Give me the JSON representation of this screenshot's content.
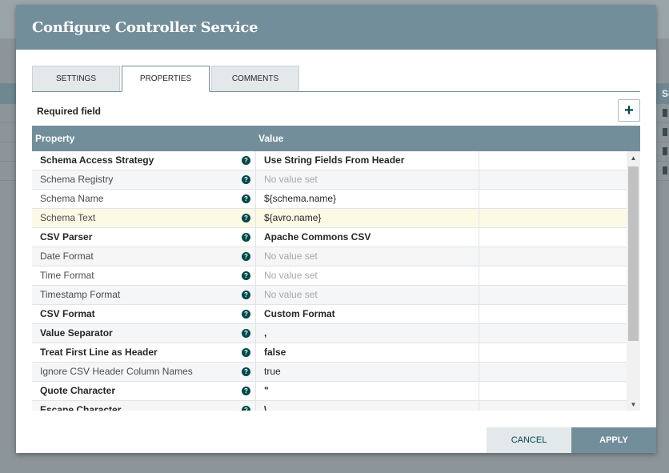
{
  "dialog": {
    "title": "Configure Controller Service"
  },
  "tabs": [
    {
      "label": "SETTINGS",
      "active": false
    },
    {
      "label": "PROPERTIES",
      "active": true
    },
    {
      "label": "COMMENTS",
      "active": false
    }
  ],
  "properties_panel": {
    "required_label": "Required field",
    "add_icon": "plus-icon",
    "add_glyph": "+",
    "headers": {
      "property": "Property",
      "value": "Value"
    },
    "help_glyph": "?",
    "rows": [
      {
        "name": "Schema Access Strategy",
        "value": "Use String Fields From Header",
        "required": true,
        "empty": false
      },
      {
        "name": "Schema Registry",
        "value": "No value set",
        "required": false,
        "empty": true
      },
      {
        "name": "Schema Name",
        "value": "${schema.name}",
        "required": false,
        "empty": false
      },
      {
        "name": "Schema Text",
        "value": "${avro.name}",
        "required": false,
        "empty": false
      },
      {
        "name": "CSV Parser",
        "value": "Apache Commons CSV",
        "required": true,
        "empty": false
      },
      {
        "name": "Date Format",
        "value": "No value set",
        "required": false,
        "empty": true
      },
      {
        "name": "Time Format",
        "value": "No value set",
        "required": false,
        "empty": true
      },
      {
        "name": "Timestamp Format",
        "value": "No value set",
        "required": false,
        "empty": true
      },
      {
        "name": "CSV Format",
        "value": "Custom Format",
        "required": true,
        "empty": false
      },
      {
        "name": "Value Separator",
        "value": ",",
        "required": true,
        "empty": false
      },
      {
        "name": "Treat First Line as Header",
        "value": "false",
        "required": true,
        "empty": false
      },
      {
        "name": "Ignore CSV Header Column Names",
        "value": "true",
        "required": false,
        "empty": false
      },
      {
        "name": "Quote Character",
        "value": "\"",
        "required": true,
        "empty": false
      },
      {
        "name": "Escape Character",
        "value": "\\",
        "required": true,
        "empty": false
      }
    ],
    "highlighted_row": 3
  },
  "scrollbar": {
    "up_glyph": "▲",
    "down_glyph": "▼"
  },
  "footer": {
    "cancel_label": "CANCEL",
    "apply_label": "APPLY"
  },
  "background": {
    "column_header_fragment": "Sc"
  },
  "colors": {
    "header": "#728e9b",
    "accent": "#004849",
    "highlight_row": "#fcf9e5"
  }
}
